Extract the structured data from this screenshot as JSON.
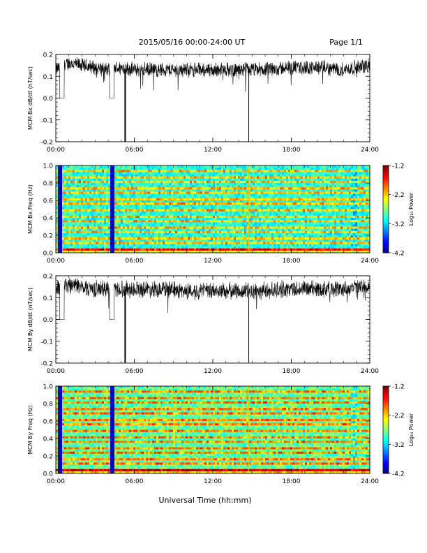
{
  "header": {
    "title": "2015/05/16  00:00-24:00 UT",
    "page": "Page 1/1"
  },
  "chart_data": [
    {
      "type": "line",
      "ylabel": "MCM Bx dB/dt (nT/sec)",
      "ylim": [
        -0.2,
        0.2
      ],
      "yticks": [
        "0.2",
        "0.1",
        "0.0",
        "-0.1",
        "-0.2"
      ],
      "xlim": [
        0,
        24
      ],
      "xticks": [
        "00:00",
        "06:00",
        "12:00",
        "18:00",
        "24:00"
      ],
      "series_description": {
        "baseline": 0.13,
        "spread": 0.03,
        "gaps": [
          [
            0.3,
            0.65
          ],
          [
            4.1,
            4.45
          ]
        ],
        "spikes_down": [
          5.3,
          14.75
        ],
        "points": [
          [
            0,
            0.13
          ],
          [
            1,
            0.16
          ],
          [
            2,
            0.15
          ],
          [
            3,
            0.14
          ],
          [
            4,
            0.13
          ],
          [
            5,
            0.14
          ],
          [
            6,
            0.13
          ],
          [
            8,
            0.13
          ],
          [
            10,
            0.13
          ],
          [
            12,
            0.13
          ],
          [
            14,
            0.13
          ],
          [
            16,
            0.13
          ],
          [
            18,
            0.14
          ],
          [
            20,
            0.14
          ],
          [
            22,
            0.13
          ],
          [
            24,
            0.15
          ]
        ]
      }
    },
    {
      "type": "heatmap",
      "ylabel": "MCM Bx Freq (Hz)",
      "ylim": [
        0.0,
        1.0
      ],
      "yticks": [
        "1.0",
        "0.8",
        "0.6",
        "0.4",
        "0.2",
        "0.0"
      ],
      "xticks": [
        "00:00",
        "06:00",
        "12:00",
        "18:00",
        "24:00"
      ],
      "colorbar": {
        "label": "Log₁₀ Power",
        "ticks": [
          "-1.2",
          "-2.2",
          "-3.2",
          "-4.2"
        ],
        "range": [
          -4.2,
          -1.2
        ]
      }
    },
    {
      "type": "line",
      "ylabel": "MCM By dB/dt (nT/sec)",
      "ylim": [
        -0.2,
        0.2
      ],
      "yticks": [
        "0.2",
        "0.1",
        "0.0",
        "-0.1",
        "-0.2"
      ],
      "xlim": [
        0,
        24
      ],
      "xticks": [
        "00:00",
        "06:00",
        "12:00",
        "18:00",
        "24:00"
      ],
      "series_description": {
        "baseline": 0.14,
        "spread": 0.035,
        "gaps": [
          [
            0.3,
            0.65
          ],
          [
            4.1,
            4.45
          ]
        ],
        "spikes_down": [
          5.3,
          14.75
        ],
        "points": [
          [
            0,
            0.14
          ],
          [
            1,
            0.16
          ],
          [
            2,
            0.15
          ],
          [
            3,
            0.14
          ],
          [
            4,
            0.14
          ],
          [
            5,
            0.14
          ],
          [
            6,
            0.14
          ],
          [
            8,
            0.14
          ],
          [
            10,
            0.13
          ],
          [
            12,
            0.13
          ],
          [
            14,
            0.13
          ],
          [
            16,
            0.13
          ],
          [
            18,
            0.14
          ],
          [
            20,
            0.14
          ],
          [
            22,
            0.14
          ],
          [
            24,
            0.15
          ]
        ]
      }
    },
    {
      "type": "heatmap",
      "ylabel": "MCM By Freq (Hz)",
      "ylim": [
        0.0,
        1.0
      ],
      "yticks": [
        "1.0",
        "0.8",
        "0.6",
        "0.4",
        "0.2",
        "0.0"
      ],
      "xticks": [
        "00:00",
        "06:00",
        "12:00",
        "18:00",
        "24:00"
      ],
      "colorbar": {
        "label": "Log₁₀ Power",
        "ticks": [
          "-1.2",
          "-2.2",
          "-3.2",
          "-4.2"
        ],
        "range": [
          -4.2,
          -1.2
        ]
      }
    }
  ],
  "footer": {
    "xlabel": "Universal Time (hh:mm)"
  }
}
